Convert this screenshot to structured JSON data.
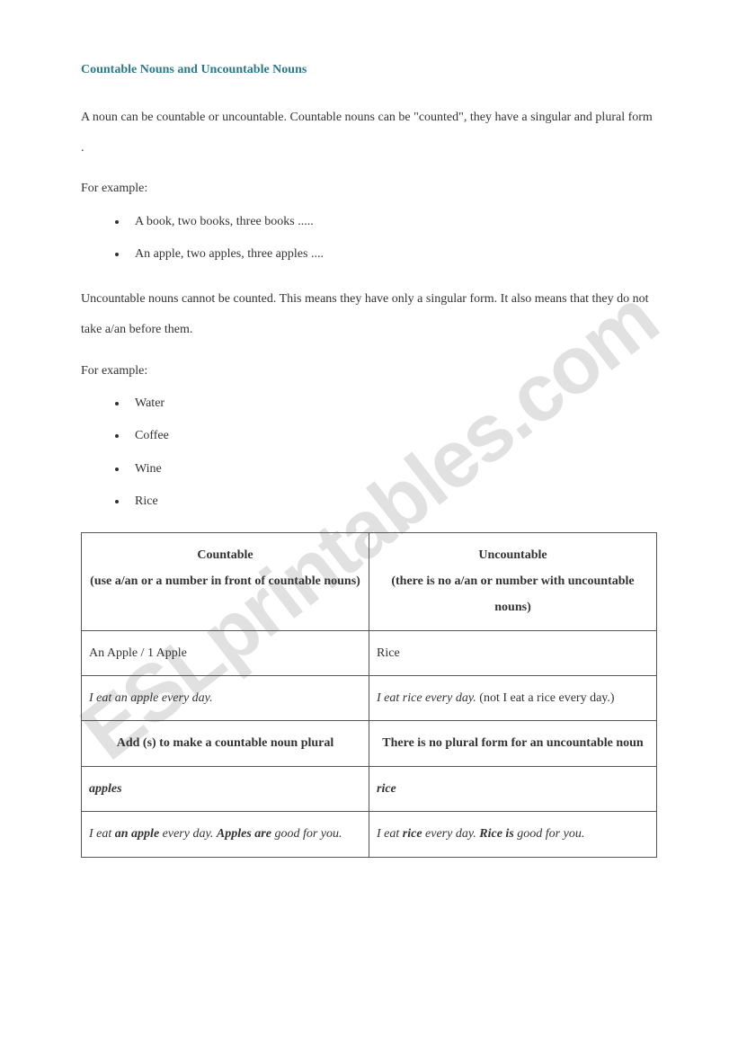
{
  "title": "Countable Nouns and Uncountable Nouns",
  "intro": "A noun can be countable or uncountable. Countable nouns can be \"counted\", they have a singular and plural form .",
  "forExample1": "For example:",
  "countableExamples": [
    "A book, two books, three books .....",
    "An apple, two apples, three apples ...."
  ],
  "uncountableIntro": "Uncountable nouns cannot be counted. This means they have only a singular form. It also means that they do not take a/an before them.",
  "forExample2": "For example:",
  "uncountableExamples": [
    "Water",
    "Coffee",
    "Wine",
    "Rice"
  ],
  "table": {
    "head1_line1": "Countable",
    "head1_line2": "(use a/an or a number in front of countable nouns)",
    "head2_line1": "Uncountable",
    "head2_line2": "(there is no a/an or number with uncountable nouns)",
    "r1c1": "An Apple / 1 Apple",
    "r1c2": "Rice",
    "r2c1": "I eat an apple every day.",
    "r2c2_italic": "I eat rice every day.",
    "r2c2_plain": " (not I eat a rice every day.)",
    "r3c1": "Add (s) to make a countable noun plural",
    "r3c2": "There is no plural form for an uncountable noun",
    "r4c1": "apples",
    "r4c2": "rice",
    "r5c1_p1": "I eat ",
    "r5c1_b1": "an apple",
    "r5c1_p2": " every day. ",
    "r5c1_b2": "Apples are",
    "r5c1_p3": " good for you.",
    "r5c2_p1": "I eat ",
    "r5c2_b1": "rice",
    "r5c2_p2": " every day. ",
    "r5c2_b2": "Rice is",
    "r5c2_p3": " good for you."
  },
  "watermark": "ESLprintables.com"
}
